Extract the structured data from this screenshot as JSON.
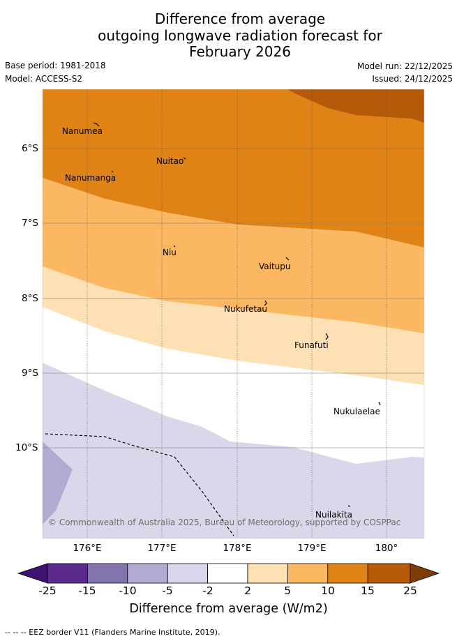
{
  "title": {
    "line1": "Difference from average",
    "line2": "outgoing longwave radiation forecast for",
    "line3": "February 2026"
  },
  "meta": {
    "base_period": "Base period: 1981-2018",
    "model": "Model: ACCESS-S2",
    "model_run": "Model run: 22/12/2025",
    "issued": "Issued: 24/12/2025"
  },
  "axes": {
    "lat_labels": [
      "6°S",
      "7°S",
      "8°S",
      "9°S",
      "10°S"
    ],
    "lon_labels": [
      "176°E",
      "177°E",
      "178°E",
      "179°E",
      "180°"
    ]
  },
  "places": [
    {
      "name": "Nanumea"
    },
    {
      "name": "Nuitao"
    },
    {
      "name": "Nanumanga"
    },
    {
      "name": "Niu"
    },
    {
      "name": "Vaitupu"
    },
    {
      "name": "Nukufetau"
    },
    {
      "name": "Funafuti"
    },
    {
      "name": "Nukulaelae"
    },
    {
      "name": "Nuilakita"
    }
  ],
  "copyright": "© Commonwealth of Australia 2025, Bureau of Meteorology, supported by COSPPac",
  "colorbar": {
    "label": "Difference from average (W/m2)",
    "ticks": [
      "-25",
      "-15",
      "-10",
      "-5",
      "-2",
      "2",
      "5",
      "10",
      "15",
      "25"
    ],
    "colors": {
      "lt_-25": "#3f1170",
      "-25_-15": "#5b2a8c",
      "-15_-10": "#8374ae",
      "-10_-5": "#b2aad2",
      "-5_-2": "#d8d8ea",
      "-2_2": "#ffffff",
      "2_5": "#fde0b4",
      "5_10": "#fbb761",
      "10_15": "#e08316",
      "15_25": "#b55a08",
      "gt_25": "#7f3c08"
    }
  },
  "footer": "-- -- -- EEZ border V11 (Flanders Marine Institute, 2019)."
}
